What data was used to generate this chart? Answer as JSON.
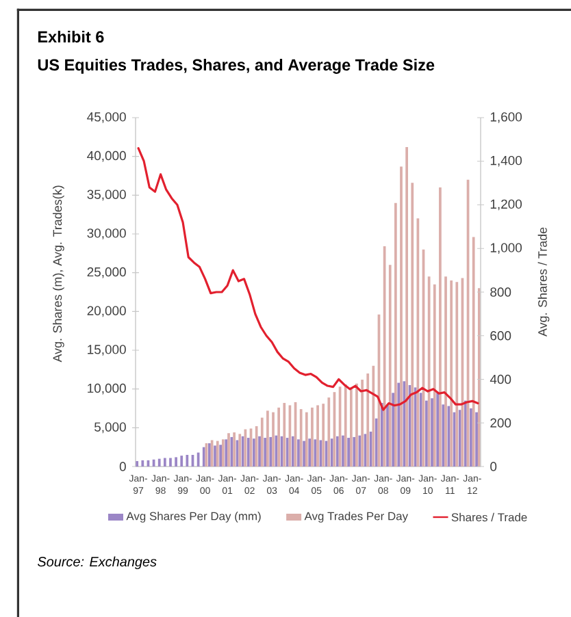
{
  "chart_data": {
    "type": "bar",
    "title": "Exhibit 6",
    "subtitle": "US Equities Trades, Shares, and Average Trade Size",
    "ylabel": "Avg. Shares (m), Avg. Trades(k)",
    "y2label": "Avg. Shares / Trade",
    "categories": [
      "Jan-97",
      null,
      null,
      null,
      "Jan-98",
      null,
      null,
      null,
      "Jan-99",
      null,
      null,
      null,
      "Jan-00",
      null,
      null,
      null,
      "Jan-01",
      null,
      null,
      null,
      "Jan-02",
      null,
      null,
      null,
      "Jan-03",
      null,
      null,
      null,
      "Jan-04",
      null,
      null,
      null,
      "Jan-05",
      null,
      null,
      null,
      "Jan-06",
      null,
      null,
      null,
      "Jan-07",
      null,
      null,
      null,
      "Jan-08",
      null,
      null,
      null,
      "Jan-09",
      null,
      null,
      null,
      "Jan-10",
      null,
      null,
      null,
      "Jan-11",
      null,
      null,
      null,
      "Jan-12",
      null
    ],
    "series": [
      {
        "name": "Avg Shares Per Day (mm)",
        "color": "#9b86c6",
        "values": [
          700,
          800,
          800,
          900,
          1000,
          1100,
          1100,
          1200,
          1400,
          1500,
          1500,
          1800,
          2500,
          3000,
          2700,
          2800,
          3500,
          3800,
          3400,
          3900,
          3700,
          3600,
          3900,
          3700,
          3800,
          4000,
          3900,
          3700,
          3900,
          3500,
          3300,
          3600,
          3500,
          3400,
          3300,
          3600,
          3900,
          4000,
          3700,
          3800,
          4000,
          4200,
          4500,
          6200,
          8200,
          8000,
          9500,
          10800,
          11000,
          10500,
          10200,
          9500,
          8500,
          8800,
          9500,
          8000,
          7800,
          7000,
          7300,
          8500,
          7500,
          7000
        ]
      },
      {
        "name": "Avg Trades Per Day",
        "color": "#dbaeaa",
        "values": [
          null,
          null,
          null,
          null,
          null,
          null,
          null,
          null,
          null,
          null,
          null,
          null,
          3000,
          3400,
          3300,
          3500,
          4300,
          4400,
          4200,
          4800,
          4900,
          5200,
          6300,
          7200,
          7000,
          7600,
          8200,
          7900,
          8300,
          7400,
          7000,
          7600,
          7900,
          8100,
          8900,
          9600,
          10300,
          10600,
          10200,
          10700,
          11200,
          12000,
          13000,
          19600,
          28400,
          26000,
          34000,
          38700,
          41200,
          36600,
          32000,
          28000,
          24500,
          23500,
          36000,
          24500,
          24000,
          23800,
          24300,
          37000,
          29600,
          23000
        ]
      },
      {
        "name": "Shares / Trade",
        "type": "line",
        "axis": "y2",
        "color": "#e2202e",
        "values": [
          1460,
          1400,
          1280,
          1260,
          1340,
          1270,
          1230,
          1200,
          1120,
          960,
          935,
          915,
          860,
          795,
          800,
          800,
          830,
          900,
          850,
          860,
          790,
          700,
          640,
          600,
          570,
          525,
          495,
          480,
          450,
          430,
          420,
          425,
          410,
          385,
          370,
          365,
          400,
          375,
          355,
          370,
          345,
          350,
          335,
          320,
          260,
          290,
          280,
          285,
          300,
          330,
          340,
          360,
          345,
          355,
          335,
          340,
          315,
          285,
          285,
          295,
          300,
          290
        ]
      }
    ],
    "ylim": [
      0,
      45000
    ],
    "yticks": [
      0,
      {
        "value": 5000,
        "label": "5,000"
      },
      {
        "value": 10000,
        "label": "10,000"
      },
      {
        "value": 15000,
        "label": "15,000"
      },
      {
        "value": 20000,
        "label": "20,000"
      },
      {
        "value": 25000,
        "label": "25,000"
      },
      {
        "value": 30000,
        "label": "30,000"
      },
      {
        "value": 35000,
        "label": "35,000"
      },
      {
        "value": 40000,
        "label": "40,000"
      },
      {
        "value": 45000,
        "label": "45,000"
      }
    ],
    "y2lim": [
      0,
      1600
    ],
    "y2ticks": [
      0,
      200,
      400,
      600,
      800,
      {
        "value": 1000,
        "label": "1,000"
      },
      {
        "value": 1200,
        "label": "1,200"
      },
      {
        "value": 1400,
        "label": "1,400"
      },
      {
        "value": 1600,
        "label": "1,600"
      }
    ],
    "legend": "bottom",
    "annotations": [
      "Source: Exchanges"
    ]
  }
}
